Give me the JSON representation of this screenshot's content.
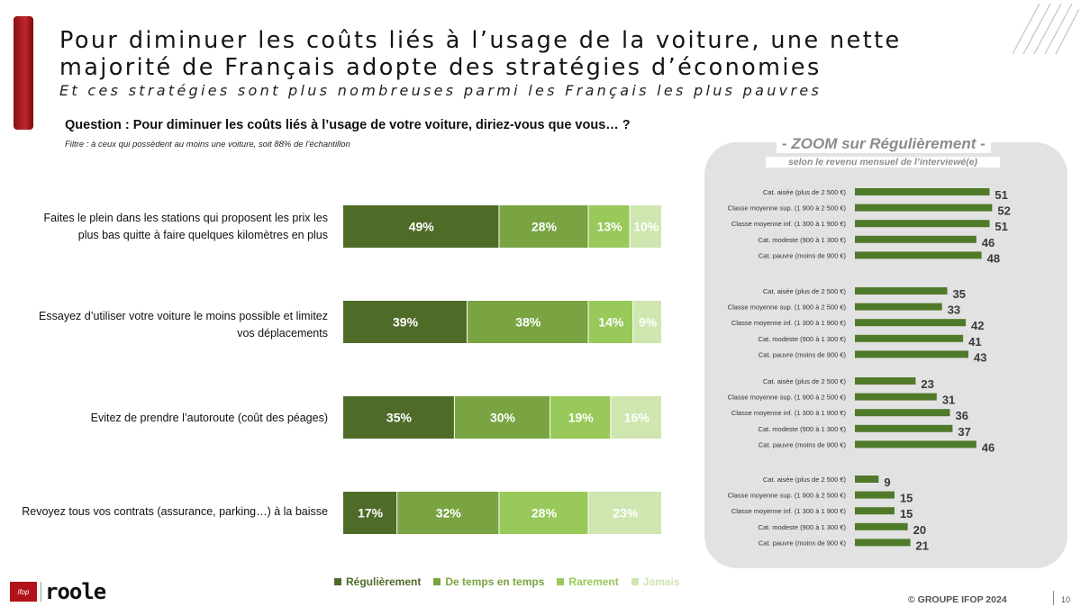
{
  "header": {
    "title": "Pour diminuer les coûts liés à l’usage de la voiture, une nette majorité de Français adopte des stratégies d’économies",
    "subtitle": "Et ces stratégies sont plus nombreuses parmi les Français les plus pauvres",
    "question": "Question : Pour diminuer les coûts liés à l’usage de votre voiture, diriez-vous que vous… ?",
    "filter": "Filtre : à ceux qui possèdent au moins une voiture, soit 88% de l’échantillon"
  },
  "colors": {
    "accent_red": "#b2131a",
    "regulierement": "#4f6b28",
    "de_temps_en_temps": "#79a441",
    "rarement": "#98c95a",
    "jamais": "#cfe6b0",
    "zoom_bar": "#4f7a2a",
    "zoom_panel": "#e2e2e2"
  },
  "chart_data": [
    {
      "type": "bar",
      "orientation": "horizontal",
      "stacked": true,
      "categories": [
        "Faites le plein dans les stations qui proposent les prix les plus bas quitte à faire quelques kilomètres en plus",
        "Essayez d’utiliser votre voiture le moins possible et limitez vos déplacements",
        "Evitez de prendre l’autoroute (coût des péages)",
        "Revoyez tous vos contrats (assurance, parking…) à la baisse"
      ],
      "series": [
        {
          "name": "Régulièrement",
          "values": [
            49,
            39,
            35,
            17
          ]
        },
        {
          "name": "De temps en temps",
          "values": [
            28,
            38,
            30,
            32
          ]
        },
        {
          "name": "Rarement",
          "values": [
            13,
            14,
            19,
            28
          ]
        },
        {
          "name": "Jamais",
          "values": [
            10,
            9,
            16,
            23
          ]
        }
      ],
      "value_suffix": "%",
      "legend_position": "bottom"
    },
    {
      "type": "bar",
      "orientation": "horizontal",
      "title": "- ZOOM sur Régulièrement -",
      "subtitle": "selon le revenu mensuel de l’interviewé(e)",
      "categories": [
        "Cat. aisée (plus de 2 500 €)",
        "Classe moyenne sup. (1 900 à 2 500 €)",
        "Classe moyenne inf. (1 300 à 1 900 €)",
        "Cat. modeste (900 à 1 300 €)",
        "Cat. pauvre (moins de 900 €)"
      ],
      "groups": [
        {
          "values": [
            51,
            52,
            51,
            46,
            48
          ]
        },
        {
          "values": [
            35,
            33,
            42,
            41,
            43
          ]
        },
        {
          "values": [
            23,
            31,
            36,
            37,
            46
          ]
        },
        {
          "values": [
            9,
            15,
            15,
            20,
            21
          ]
        }
      ]
    }
  ],
  "footer": {
    "logo_ifop": "ifop",
    "logo_roole": "roole",
    "copyright": "© GROUPE IFOP 2024",
    "page_number": "10"
  }
}
